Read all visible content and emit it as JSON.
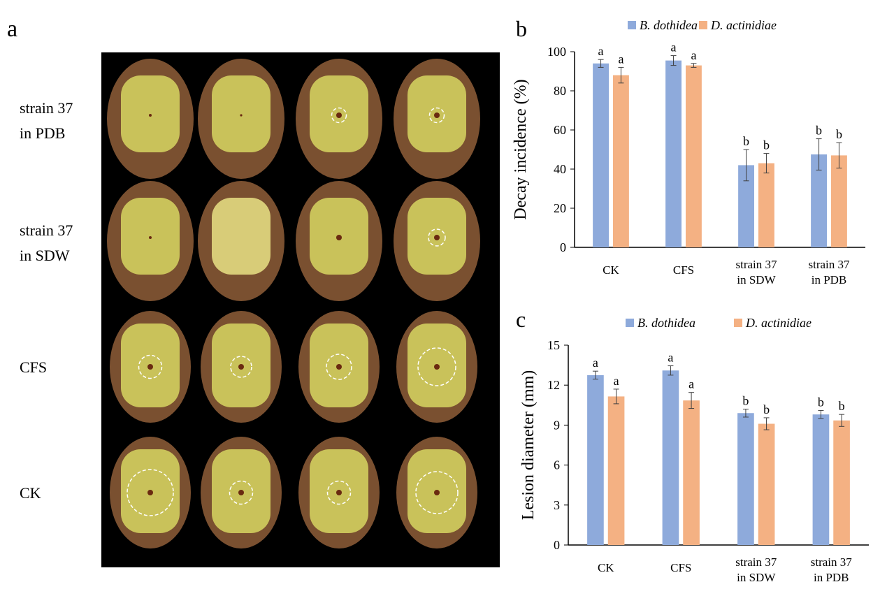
{
  "panel_a": {
    "label": "a",
    "rows": [
      {
        "label_line1": "strain 37",
        "label_line2": "in PDB",
        "lesions": [
          0,
          0,
          0.35,
          0.35
        ],
        "dots": [
          0.5,
          0.4,
          1,
          1
        ]
      },
      {
        "label_line1": "strain 37",
        "label_line2": "in SDW",
        "lesions": [
          0,
          0,
          0,
          0.4
        ],
        "dots": [
          0.5,
          0,
          1,
          1
        ]
      },
      {
        "label_line1": "CFS",
        "label_line2": "",
        "lesions": [
          0.55,
          0.5,
          0.6,
          0.9
        ],
        "dots": [
          1,
          1,
          1,
          1
        ]
      },
      {
        "label_line1": "CK",
        "label_line2": "",
        "lesions": [
          1.1,
          0.55,
          0.55,
          1.0
        ],
        "dots": [
          1,
          1,
          1,
          1
        ]
      }
    ]
  },
  "colors": {
    "b_dothidea": "#8eaadb",
    "d_actinidiae": "#f4b183",
    "error": "#404040"
  },
  "chart_data": [
    {
      "panel": "b",
      "type": "bar",
      "ylabel": "Decay incidence  (%)",
      "ylim": [
        0,
        100
      ],
      "yticks": [
        0,
        20,
        40,
        60,
        80,
        100
      ],
      "categories": [
        [
          "CK",
          ""
        ],
        [
          "CFS",
          ""
        ],
        [
          "strain 37",
          "in SDW"
        ],
        [
          "strain 37",
          "in PDB"
        ]
      ],
      "legend": "top",
      "series": [
        {
          "name": "B. dothidea",
          "values": [
            94,
            95.5,
            42,
            47.5
          ],
          "errors": [
            2,
            2.5,
            8,
            8
          ],
          "letters": [
            "a",
            "a",
            "b",
            "b"
          ]
        },
        {
          "name": "D. actinidiae",
          "values": [
            88,
            93,
            43,
            47
          ],
          "errors": [
            4,
            1,
            5,
            6.5
          ],
          "letters": [
            "a",
            "a",
            "b",
            "b"
          ]
        }
      ]
    },
    {
      "panel": "c",
      "type": "bar",
      "ylabel": "Lesion diameter (mm)",
      "ylim": [
        0,
        15
      ],
      "yticks": [
        0,
        3,
        6,
        9,
        12,
        15
      ],
      "categories": [
        [
          "CK",
          ""
        ],
        [
          "CFS",
          ""
        ],
        [
          "strain 37",
          "in SDW"
        ],
        [
          "strain 37",
          "in PDB"
        ]
      ],
      "legend": "top",
      "series": [
        {
          "name": "B. dothidea",
          "values": [
            12.75,
            13.1,
            9.9,
            9.8
          ],
          "errors": [
            0.3,
            0.35,
            0.3,
            0.3
          ],
          "letters": [
            "a",
            "a",
            "b",
            "b"
          ]
        },
        {
          "name": "D. actinidiae",
          "values": [
            11.15,
            10.85,
            9.1,
            9.35
          ],
          "errors": [
            0.55,
            0.6,
            0.45,
            0.45
          ],
          "letters": [
            "a",
            "a",
            "b",
            "b"
          ]
        }
      ]
    }
  ]
}
